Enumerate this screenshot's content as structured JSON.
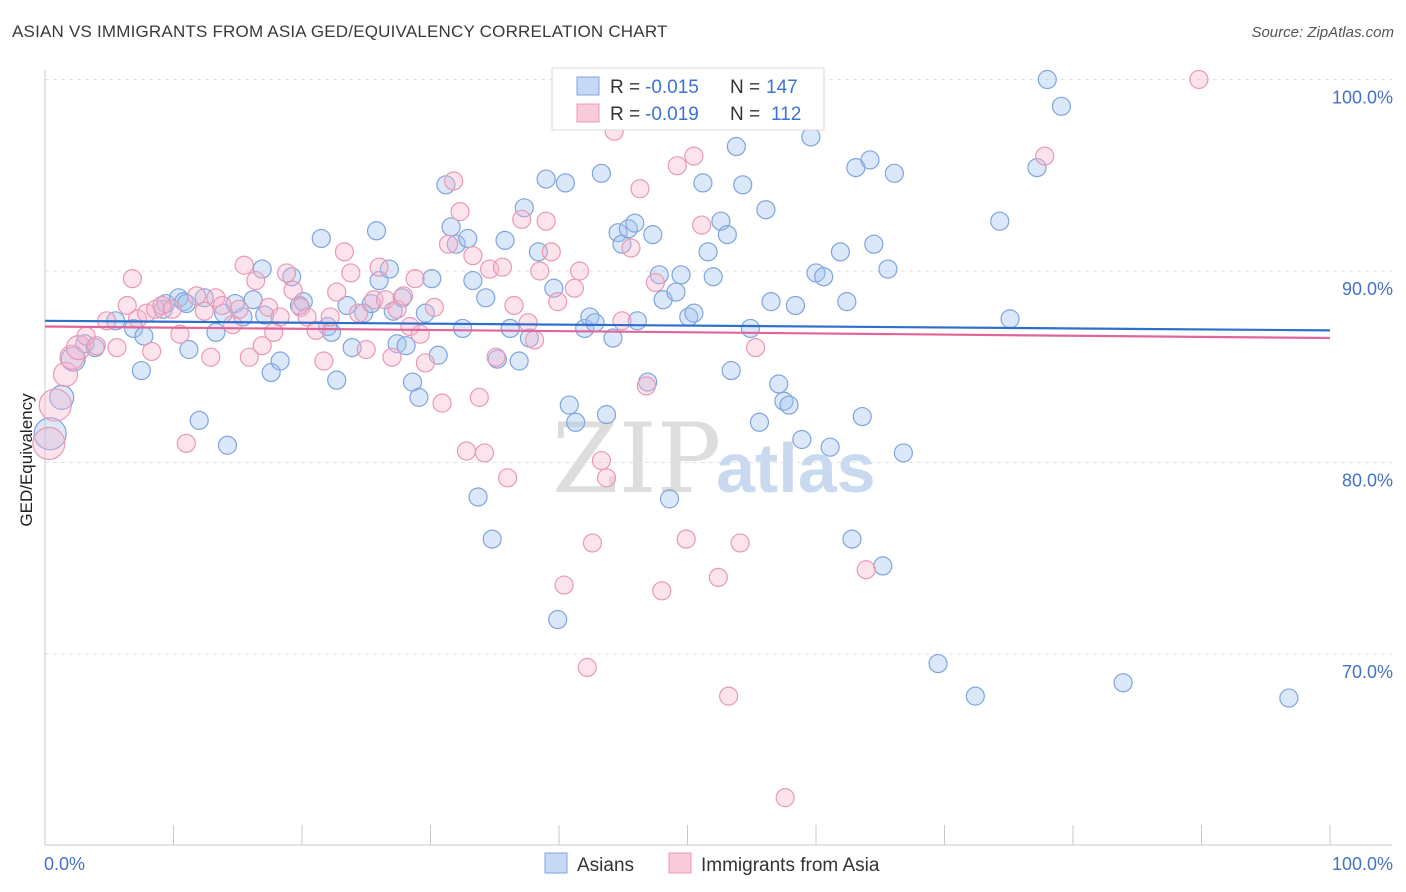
{
  "title": "ASIAN VS IMMIGRANTS FROM ASIA GED/EQUIVALENCY CORRELATION CHART",
  "source": "Source: ZipAtlas.com",
  "watermark": {
    "part1": "ZIP",
    "part2": "atlas"
  },
  "colors": {
    "blue": "#8fb3e8",
    "blue_line": "#2f6fcc",
    "pink": "#f2a9c0",
    "pink_line": "#e0669a",
    "tick_text": "#4472c4",
    "grid": "#e2e2e2"
  },
  "legend": {
    "rows": [
      {
        "r_label": "R =",
        "r_value": "-0.015",
        "n_label": "N =",
        "n_value": "147"
      },
      {
        "r_label": "R =",
        "r_value": "-0.019",
        "n_label": "N =",
        "n_value": "112"
      }
    ]
  },
  "chart_data": {
    "type": "scatter",
    "title": "ASIAN VS IMMIGRANTS FROM ASIA GED/EQUIVALENCY CORRELATION CHART",
    "xlabel": "",
    "ylabel": "GED/Equivalency",
    "xlim": [
      0,
      100
    ],
    "ylim": [
      60.5,
      101.5
    ],
    "x_tick_labels": [
      "0.0%",
      "100.0%"
    ],
    "y_ticks": [
      70,
      80,
      90,
      100
    ],
    "y_tick_labels": [
      "70.0%",
      "80.0%",
      "90.0%",
      "100.0%"
    ],
    "grid": true,
    "legend_position": "top-center",
    "series": [
      {
        "name": "Asians",
        "r": -0.015,
        "n": 147,
        "trend": {
          "x": [
            0,
            100
          ],
          "y": [
            87.4,
            86.9
          ]
        },
        "points": [
          [
            0.4,
            81.5,
            3
          ],
          [
            1.3,
            83.4,
            2
          ],
          [
            2.2,
            85.4,
            2
          ],
          [
            3.1,
            86.2,
            1
          ],
          [
            3.9,
            86.0,
            1
          ],
          [
            5.5,
            87.4,
            1
          ],
          [
            6.9,
            87.0,
            1
          ],
          [
            7.5,
            84.8,
            1
          ],
          [
            7.7,
            86.6,
            1
          ],
          [
            9.2,
            88.0,
            1
          ],
          [
            9.4,
            88.3,
            1
          ],
          [
            10.4,
            88.6,
            1
          ],
          [
            10.8,
            88.4,
            1
          ],
          [
            11.0,
            88.3,
            1
          ],
          [
            11.2,
            85.9,
            1
          ],
          [
            12.0,
            82.2,
            1
          ],
          [
            12.4,
            88.6,
            1
          ],
          [
            13.3,
            86.8,
            1
          ],
          [
            13.9,
            87.8,
            1
          ],
          [
            14.2,
            80.9,
            1
          ],
          [
            14.8,
            88.3,
            1
          ],
          [
            15.4,
            87.6,
            1
          ],
          [
            16.2,
            88.5,
            1
          ],
          [
            16.9,
            90.1,
            1
          ],
          [
            17.1,
            87.7,
            1
          ],
          [
            17.6,
            84.7,
            1
          ],
          [
            18.3,
            85.3,
            1
          ],
          [
            19.2,
            89.7,
            1
          ],
          [
            19.8,
            88.2,
            1
          ],
          [
            20.1,
            88.4,
            1
          ],
          [
            21.5,
            91.7,
            1
          ],
          [
            22.0,
            87.1,
            1
          ],
          [
            22.3,
            86.8,
            1
          ],
          [
            22.7,
            84.3,
            1
          ],
          [
            23.5,
            88.2,
            1
          ],
          [
            23.9,
            86.0,
            1
          ],
          [
            24.8,
            87.8,
            1
          ],
          [
            25.4,
            88.3,
            1
          ],
          [
            25.8,
            92.1,
            1
          ],
          [
            26.0,
            89.5,
            1
          ],
          [
            26.8,
            90.1,
            1
          ],
          [
            27.1,
            87.9,
            1
          ],
          [
            27.4,
            86.2,
            1
          ],
          [
            27.8,
            88.6,
            1
          ],
          [
            28.1,
            86.1,
            1
          ],
          [
            28.6,
            84.2,
            1
          ],
          [
            29.1,
            83.4,
            1
          ],
          [
            29.6,
            87.8,
            1
          ],
          [
            30.1,
            89.6,
            1
          ],
          [
            30.6,
            85.6,
            1
          ],
          [
            31.2,
            94.5,
            1
          ],
          [
            31.6,
            92.3,
            1
          ],
          [
            32.0,
            91.4,
            1
          ],
          [
            32.5,
            87.0,
            1
          ],
          [
            32.9,
            91.7,
            1
          ],
          [
            33.3,
            89.5,
            1
          ],
          [
            33.7,
            78.2,
            1
          ],
          [
            34.3,
            88.6,
            1
          ],
          [
            34.8,
            76.0,
            1
          ],
          [
            35.2,
            85.4,
            1
          ],
          [
            35.8,
            91.6,
            1
          ],
          [
            36.2,
            87.0,
            1
          ],
          [
            36.9,
            85.3,
            1
          ],
          [
            37.3,
            93.3,
            1
          ],
          [
            37.7,
            86.5,
            1
          ],
          [
            38.4,
            91.0,
            1
          ],
          [
            39.0,
            94.8,
            1
          ],
          [
            39.6,
            89.1,
            1
          ],
          [
            39.9,
            71.8,
            1
          ],
          [
            40.5,
            94.6,
            1
          ],
          [
            40.8,
            83.0,
            1
          ],
          [
            41.3,
            82.1,
            1
          ],
          [
            42.0,
            87.0,
            1
          ],
          [
            42.4,
            87.6,
            1
          ],
          [
            42.8,
            87.3,
            1
          ],
          [
            43.3,
            95.1,
            1
          ],
          [
            43.7,
            82.5,
            1
          ],
          [
            44.2,
            86.5,
            1
          ],
          [
            44.6,
            92.0,
            1
          ],
          [
            44.9,
            91.4,
            1
          ],
          [
            45.4,
            92.2,
            1
          ],
          [
            45.9,
            92.5,
            1
          ],
          [
            46.1,
            87.4,
            1
          ],
          [
            46.9,
            84.2,
            1
          ],
          [
            47.3,
            91.9,
            1
          ],
          [
            47.8,
            89.8,
            1
          ],
          [
            48.1,
            88.5,
            1
          ],
          [
            48.6,
            78.1,
            1
          ],
          [
            49.1,
            88.9,
            1
          ],
          [
            49.5,
            89.8,
            1
          ],
          [
            50.1,
            87.6,
            1
          ],
          [
            50.5,
            87.8,
            1
          ],
          [
            51.2,
            94.6,
            1
          ],
          [
            51.6,
            91.0,
            1
          ],
          [
            52.0,
            89.7,
            1
          ],
          [
            52.6,
            92.6,
            1
          ],
          [
            53.1,
            91.9,
            1
          ],
          [
            53.4,
            84.8,
            1
          ],
          [
            53.8,
            96.5,
            1
          ],
          [
            54.3,
            94.5,
            1
          ],
          [
            54.9,
            87.0,
            1
          ],
          [
            55.6,
            82.1,
            1
          ],
          [
            56.1,
            93.2,
            1
          ],
          [
            56.5,
            88.4,
            1
          ],
          [
            57.1,
            84.1,
            1
          ],
          [
            57.5,
            83.2,
            1
          ],
          [
            57.9,
            83.0,
            1
          ],
          [
            58.4,
            88.2,
            1
          ],
          [
            58.9,
            81.2,
            1
          ],
          [
            59.6,
            97.0,
            1
          ],
          [
            60.0,
            89.9,
            1
          ],
          [
            60.6,
            89.7,
            1
          ],
          [
            61.1,
            80.8,
            1
          ],
          [
            61.9,
            91.0,
            1
          ],
          [
            62.4,
            88.4,
            1
          ],
          [
            62.8,
            76.0,
            1
          ],
          [
            63.1,
            95.4,
            1
          ],
          [
            63.6,
            82.4,
            1
          ],
          [
            64.2,
            95.8,
            1
          ],
          [
            64.5,
            91.4,
            1
          ],
          [
            65.2,
            74.6,
            1
          ],
          [
            65.6,
            90.1,
            1
          ],
          [
            66.1,
            95.1,
            1
          ],
          [
            66.8,
            80.5,
            1
          ],
          [
            69.5,
            69.5,
            1
          ],
          [
            72.4,
            67.8,
            1
          ],
          [
            74.3,
            92.6,
            1
          ],
          [
            75.1,
            87.5,
            1
          ],
          [
            77.2,
            95.4,
            1
          ],
          [
            78.0,
            100.0,
            1
          ],
          [
            79.1,
            98.6,
            1
          ],
          [
            83.9,
            68.5,
            1
          ],
          [
            96.8,
            67.7,
            1
          ]
        ]
      },
      {
        "name": "Immigrants from Asia",
        "r": -0.019,
        "n": 112,
        "trend": {
          "x": [
            0,
            100
          ],
          "y": [
            87.1,
            86.5
          ]
        },
        "points": [
          [
            0.3,
            81.0,
            3
          ],
          [
            0.8,
            83.0,
            3
          ],
          [
            1.6,
            84.6,
            2
          ],
          [
            2.1,
            85.5,
            2
          ],
          [
            2.6,
            86.0,
            2
          ],
          [
            3.2,
            86.6,
            1
          ],
          [
            4.0,
            86.1,
            1
          ],
          [
            4.8,
            87.4,
            1
          ],
          [
            5.6,
            86.0,
            1
          ],
          [
            6.4,
            88.2,
            1
          ],
          [
            6.8,
            89.6,
            1
          ],
          [
            7.2,
            87.5,
            1
          ],
          [
            7.9,
            87.8,
            1
          ],
          [
            8.3,
            85.8,
            1
          ],
          [
            8.6,
            88.0,
            1
          ],
          [
            9.1,
            88.2,
            1
          ],
          [
            9.9,
            88.0,
            1
          ],
          [
            10.5,
            86.7,
            1
          ],
          [
            11.0,
            81.0,
            1
          ],
          [
            11.8,
            88.7,
            1
          ],
          [
            12.4,
            87.9,
            1
          ],
          [
            12.9,
            85.5,
            1
          ],
          [
            13.3,
            88.6,
            1
          ],
          [
            13.8,
            88.2,
            1
          ],
          [
            14.6,
            87.2,
            1
          ],
          [
            15.1,
            88.0,
            1
          ],
          [
            15.5,
            90.3,
            1
          ],
          [
            15.9,
            85.5,
            1
          ],
          [
            16.4,
            89.5,
            1
          ],
          [
            16.9,
            86.1,
            1
          ],
          [
            17.4,
            88.1,
            1
          ],
          [
            17.8,
            86.8,
            1
          ],
          [
            18.3,
            87.6,
            1
          ],
          [
            18.8,
            89.9,
            1
          ],
          [
            19.3,
            89.0,
            1
          ],
          [
            19.9,
            88.1,
            1
          ],
          [
            20.4,
            87.6,
            1
          ],
          [
            21.1,
            86.9,
            1
          ],
          [
            21.7,
            85.3,
            1
          ],
          [
            22.2,
            87.6,
            1
          ],
          [
            22.7,
            88.9,
            1
          ],
          [
            23.3,
            91.0,
            1
          ],
          [
            23.8,
            89.9,
            1
          ],
          [
            24.4,
            87.8,
            1
          ],
          [
            25.0,
            85.9,
            1
          ],
          [
            25.6,
            88.5,
            1
          ],
          [
            26.0,
            90.2,
            1
          ],
          [
            26.5,
            88.5,
            1
          ],
          [
            27.0,
            85.5,
            1
          ],
          [
            27.4,
            88.0,
            1
          ],
          [
            27.9,
            88.7,
            1
          ],
          [
            28.4,
            87.1,
            1
          ],
          [
            28.8,
            89.6,
            1
          ],
          [
            29.2,
            86.7,
            1
          ],
          [
            29.6,
            85.2,
            1
          ],
          [
            30.3,
            88.1,
            1
          ],
          [
            30.9,
            83.1,
            1
          ],
          [
            31.4,
            91.4,
            1
          ],
          [
            31.8,
            94.7,
            1
          ],
          [
            32.3,
            93.1,
            1
          ],
          [
            32.8,
            80.6,
            1
          ],
          [
            33.3,
            90.8,
            1
          ],
          [
            33.8,
            83.4,
            1
          ],
          [
            34.2,
            80.5,
            1
          ],
          [
            34.6,
            90.1,
            1
          ],
          [
            35.1,
            85.5,
            1
          ],
          [
            35.6,
            90.2,
            1
          ],
          [
            36.0,
            79.2,
            1
          ],
          [
            36.5,
            88.2,
            1
          ],
          [
            37.1,
            92.7,
            1
          ],
          [
            37.6,
            87.3,
            1
          ],
          [
            38.1,
            86.4,
            1
          ],
          [
            38.5,
            90.0,
            1
          ],
          [
            39.0,
            92.6,
            1
          ],
          [
            39.4,
            91.0,
            1
          ],
          [
            39.9,
            88.4,
            1
          ],
          [
            40.4,
            73.6,
            1
          ],
          [
            41.2,
            89.1,
            1
          ],
          [
            41.6,
            90.0,
            1
          ],
          [
            42.2,
            69.3,
            1
          ],
          [
            42.6,
            75.8,
            1
          ],
          [
            43.3,
            80.1,
            1
          ],
          [
            43.7,
            79.2,
            1
          ],
          [
            44.3,
            97.3,
            1
          ],
          [
            44.9,
            87.4,
            1
          ],
          [
            45.6,
            91.2,
            1
          ],
          [
            46.3,
            94.3,
            1
          ],
          [
            46.8,
            84.0,
            1
          ],
          [
            47.5,
            89.4,
            1
          ],
          [
            48.0,
            73.3,
            1
          ],
          [
            49.2,
            95.5,
            1
          ],
          [
            49.9,
            76.0,
            1
          ],
          [
            50.5,
            96.0,
            1
          ],
          [
            51.1,
            92.4,
            1
          ],
          [
            51.8,
            98.7,
            1
          ],
          [
            52.4,
            74.0,
            1
          ],
          [
            53.2,
            67.8,
            1
          ],
          [
            54.1,
            75.8,
            1
          ],
          [
            55.3,
            86.0,
            1
          ],
          [
            56.5,
            100.0,
            1
          ],
          [
            57.6,
            62.5,
            1
          ],
          [
            58.4,
            100.0,
            1
          ],
          [
            63.9,
            74.4,
            1
          ],
          [
            77.8,
            96.0,
            1
          ],
          [
            89.8,
            100.0,
            1
          ]
        ]
      }
    ]
  },
  "bottom_legend": [
    "Asians",
    "Immigrants from Asia"
  ]
}
